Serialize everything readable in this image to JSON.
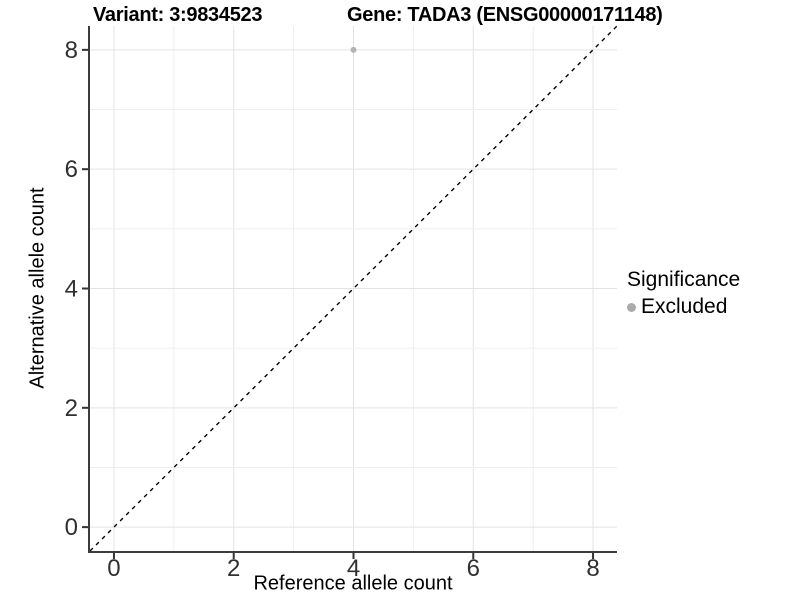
{
  "chart_data": {
    "type": "scatter",
    "title_left": "Variant: 3:9834523",
    "title_right": "Gene: TADA3 (ENSG00000171148)",
    "xlabel": "Reference allele count",
    "ylabel": "Alternative allele count",
    "xlim": [
      -0.4,
      8.4
    ],
    "ylim": [
      -0.4,
      8.4
    ],
    "xticks": [
      0,
      2,
      4,
      6,
      8
    ],
    "yticks": [
      0,
      2,
      4,
      6,
      8
    ],
    "grid": true,
    "gridline_every": 1,
    "points": [
      {
        "x": 4,
        "y": 8,
        "series": "Excluded"
      }
    ],
    "series": [
      {
        "name": "Excluded",
        "color": "#b3b3b3"
      }
    ],
    "reference_line": {
      "slope": 1,
      "intercept": 0,
      "style": "dashed",
      "color": "#000000"
    },
    "legend": {
      "position": "right",
      "title": "Significance",
      "entries": [
        {
          "label": "Excluded",
          "color": "#ababab"
        }
      ]
    },
    "colors": {
      "background": "#ffffff",
      "grid_major": "#e3e3e3",
      "grid_minor": "#efefef",
      "axis_line": "#3c3c3c",
      "tick_mark": "#333333",
      "tick_text": "#303030"
    }
  }
}
